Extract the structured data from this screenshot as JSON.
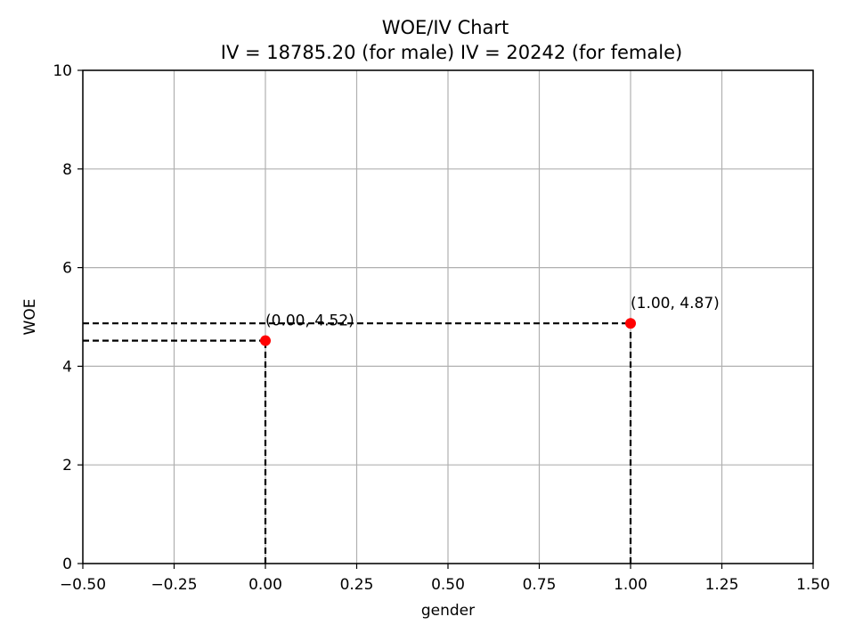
{
  "chart_data": {
    "type": "scatter",
    "title": "WOE/IV Chart",
    "subtitle": "IV = 18785.20 (for male) IV = 20242 (for female)",
    "xlabel": "gender",
    "ylabel": "WOE",
    "xlim": [
      -0.5,
      1.5
    ],
    "ylim": [
      0,
      10
    ],
    "x_ticks": [
      -0.5,
      -0.25,
      0.0,
      0.25,
      0.5,
      0.75,
      1.0,
      1.25,
      1.5
    ],
    "x_tick_labels": [
      "−0.50",
      "−0.25",
      "0.00",
      "0.25",
      "0.50",
      "0.75",
      "1.00",
      "1.25",
      "1.50"
    ],
    "y_ticks": [
      0,
      2,
      4,
      6,
      8,
      10
    ],
    "y_tick_labels": [
      "0",
      "2",
      "4",
      "6",
      "8",
      "10"
    ],
    "grid": true,
    "points": [
      {
        "x": 0.0,
        "y": 4.52,
        "label": "(0.00, 4.52)"
      },
      {
        "x": 1.0,
        "y": 4.87,
        "label": "(1.00, 4.87)"
      }
    ],
    "guide_lines": "dashed",
    "colors": {
      "point": "#ff0000",
      "guide": "#000000",
      "grid": "#b0b0b0",
      "axes": "#000000"
    }
  }
}
